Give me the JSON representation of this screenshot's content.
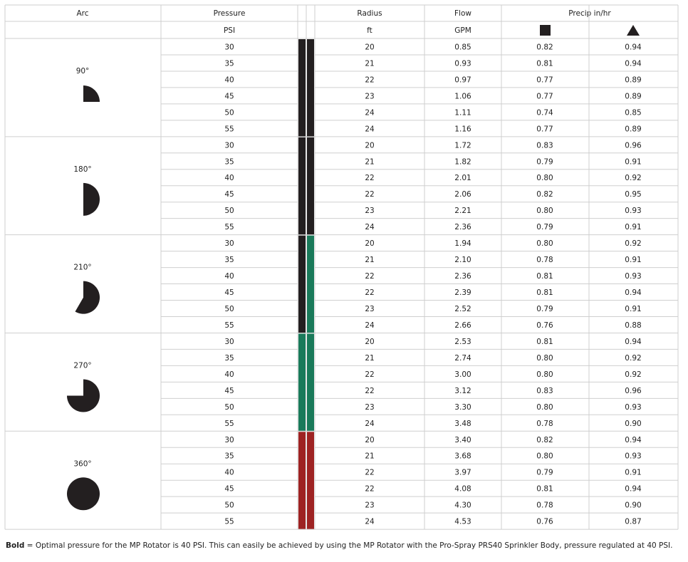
{
  "header": {
    "arc": "Arc",
    "pressure": "Pressure",
    "radius": "Radius",
    "flow": "Flow",
    "precip": "Precip in/hr",
    "psi": "PSI",
    "ft": "ft",
    "gpm": "GPM"
  },
  "groups": [
    {
      "arc": "90°",
      "bars": [
        "#231f20",
        "#231f20"
      ],
      "rows": [
        [
          "30",
          "20",
          "0.85",
          "0.82",
          "0.94"
        ],
        [
          "35",
          "21",
          "0.93",
          "0.81",
          "0.94"
        ],
        [
          "40",
          "22",
          "0.97",
          "0.77",
          "0.89"
        ],
        [
          "45",
          "23",
          "1.06",
          "0.77",
          "0.89"
        ],
        [
          "50",
          "24",
          "1.11",
          "0.74",
          "0.85"
        ],
        [
          "55",
          "24",
          "1.16",
          "0.77",
          "0.89"
        ]
      ]
    },
    {
      "arc": "180°",
      "bars": [
        "#231f20",
        "#231f20"
      ],
      "rows": [
        [
          "30",
          "20",
          "1.72",
          "0.83",
          "0.96"
        ],
        [
          "35",
          "21",
          "1.82",
          "0.79",
          "0.91"
        ],
        [
          "40",
          "22",
          "2.01",
          "0.80",
          "0.92"
        ],
        [
          "45",
          "22",
          "2.06",
          "0.82",
          "0.95"
        ],
        [
          "50",
          "23",
          "2.21",
          "0.80",
          "0.93"
        ],
        [
          "55",
          "24",
          "2.36",
          "0.79",
          "0.91"
        ]
      ]
    },
    {
      "arc": "210°",
      "bars": [
        "#231f20",
        "#1a7a5a"
      ],
      "rows": [
        [
          "30",
          "20",
          "1.94",
          "0.80",
          "0.92"
        ],
        [
          "35",
          "21",
          "2.10",
          "0.78",
          "0.91"
        ],
        [
          "40",
          "22",
          "2.36",
          "0.81",
          "0.93"
        ],
        [
          "45",
          "22",
          "2.39",
          "0.81",
          "0.94"
        ],
        [
          "50",
          "23",
          "2.52",
          "0.79",
          "0.91"
        ],
        [
          "55",
          "24",
          "2.66",
          "0.76",
          "0.88"
        ]
      ]
    },
    {
      "arc": "270°",
      "bars": [
        "#1a7a5a",
        "#1a7a5a"
      ],
      "rows": [
        [
          "30",
          "20",
          "2.53",
          "0.81",
          "0.94"
        ],
        [
          "35",
          "21",
          "2.74",
          "0.80",
          "0.92"
        ],
        [
          "40",
          "22",
          "3.00",
          "0.80",
          "0.92"
        ],
        [
          "45",
          "22",
          "3.12",
          "0.83",
          "0.96"
        ],
        [
          "50",
          "23",
          "3.30",
          "0.80",
          "0.93"
        ],
        [
          "55",
          "24",
          "3.48",
          "0.78",
          "0.90"
        ]
      ]
    },
    {
      "arc": "360°",
      "bars": [
        "#9e2323",
        "#9e2323"
      ],
      "rows": [
        [
          "30",
          "20",
          "3.40",
          "0.82",
          "0.94"
        ],
        [
          "35",
          "21",
          "3.68",
          "0.80",
          "0.93"
        ],
        [
          "40",
          "22",
          "3.97",
          "0.79",
          "0.91"
        ],
        [
          "45",
          "22",
          "4.08",
          "0.81",
          "0.94"
        ],
        [
          "50",
          "23",
          "4.30",
          "0.78",
          "0.90"
        ],
        [
          "55",
          "24",
          "4.53",
          "0.76",
          "0.87"
        ]
      ]
    }
  ],
  "footnote": {
    "bold": "Bold",
    "text": " = Optimal pressure for the MP Rotator is 40 PSI. This can easily be achieved by using the MP Rotator with the Pro-Spray PRS40 Sprinkler Body, pressure regulated at 40 PSI."
  }
}
